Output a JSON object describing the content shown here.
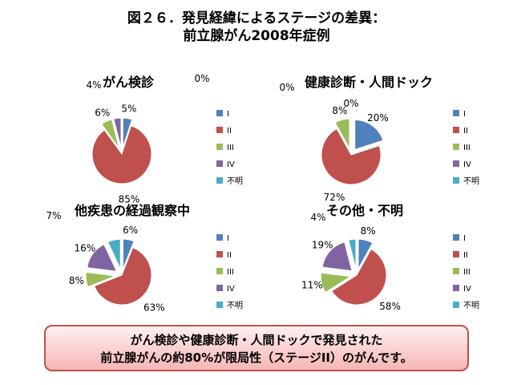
{
  "title": {
    "line1": "図２６．発見経緯によるステージの差異：",
    "line2": "前立腺がん2008年症例"
  },
  "note": {
    "line1": "がん検診や健康診断・人間ドックで発見された",
    "line2": "前立腺がんの約80%が限局性（ステージII）のがんです。"
  },
  "chart_data": [
    {
      "type": "pie",
      "title": "がん検診",
      "categories": [
        "I",
        "II",
        "III",
        "IV",
        "不明"
      ],
      "values": [
        5,
        85,
        6,
        4,
        0
      ],
      "labels": [
        "5%",
        "85%",
        "6%",
        "4%",
        "0%"
      ]
    },
    {
      "type": "pie",
      "title": "健康診断・人間ドック",
      "categories": [
        "I",
        "II",
        "III",
        "IV",
        "不明"
      ],
      "values": [
        20,
        72,
        8,
        0,
        0
      ],
      "labels": [
        "20%",
        "72%",
        "8%",
        "0%",
        "0%"
      ]
    },
    {
      "type": "pie",
      "title": "他疾患の経過観察中",
      "categories": [
        "I",
        "II",
        "III",
        "IV",
        "不明"
      ],
      "values": [
        6,
        63,
        8,
        16,
        7
      ],
      "labels": [
        "6%",
        "63%",
        "8%",
        "16%",
        "7%"
      ]
    },
    {
      "type": "pie",
      "title": "その他・不明",
      "categories": [
        "I",
        "II",
        "III",
        "IV",
        "不明"
      ],
      "values": [
        8,
        58,
        11,
        19,
        4
      ],
      "labels": [
        "8%",
        "58%",
        "11%",
        "19%",
        "4%"
      ]
    }
  ],
  "colors": [
    "#4f81bd",
    "#c0504d",
    "#9bbb59",
    "#8064a2",
    "#4bacc6"
  ]
}
